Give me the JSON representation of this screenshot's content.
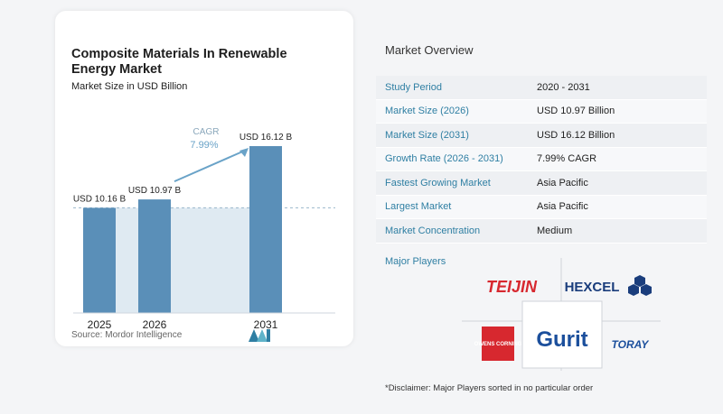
{
  "chart_title": "Composite Materials In Renewable Energy Market",
  "chart_subtitle": "Market Size in USD Billion",
  "source": "Source: Mordor Intelligence",
  "cagr_label": "CAGR",
  "cagr_value": "7.99%",
  "colors": {
    "bar": "#5a8fb8",
    "bar_light": "#dfeaf2",
    "accent": "#2f7fa3",
    "toray": "#1b4f9c",
    "teijin": "#d7282f",
    "hexcel": "#1a3d7c",
    "owens": "#d7282f"
  },
  "chart_data": {
    "type": "bar",
    "categories": [
      "2025",
      "2026",
      "2031"
    ],
    "values": [
      10.16,
      10.97,
      16.12
    ],
    "data_labels": [
      "USD 10.16 B",
      "USD 10.97 B",
      "USD 16.12 B"
    ],
    "title": "Composite Materials In Renewable Energy Market",
    "subtitle": "Market Size in USD Billion",
    "ylim": [
      0,
      17
    ],
    "baseline_value": 10.16
  },
  "overview": {
    "title": "Market Overview",
    "rows": [
      {
        "label": "Study Period",
        "value": "2020 - 2031"
      },
      {
        "label": "Market Size (2026)",
        "value": "USD 10.97 Billion"
      },
      {
        "label": "Market Size (2031)",
        "value": "USD 16.12 Billion"
      },
      {
        "label": "Growth Rate (2026 - 2031)",
        "value": "7.99% CAGR"
      },
      {
        "label": "Fastest Growing Market",
        "value": "Asia Pacific"
      },
      {
        "label": "Largest Market",
        "value": "Asia Pacific"
      },
      {
        "label": "Market Concentration",
        "value": "Medium"
      }
    ],
    "major_players_label": "Major Players",
    "players": [
      "TEIJIN",
      "HEXCEL",
      "OWENS CORNING",
      "Gurit",
      "TORAY"
    ],
    "disclaimer": "*Disclaimer: Major Players sorted in no particular order"
  }
}
